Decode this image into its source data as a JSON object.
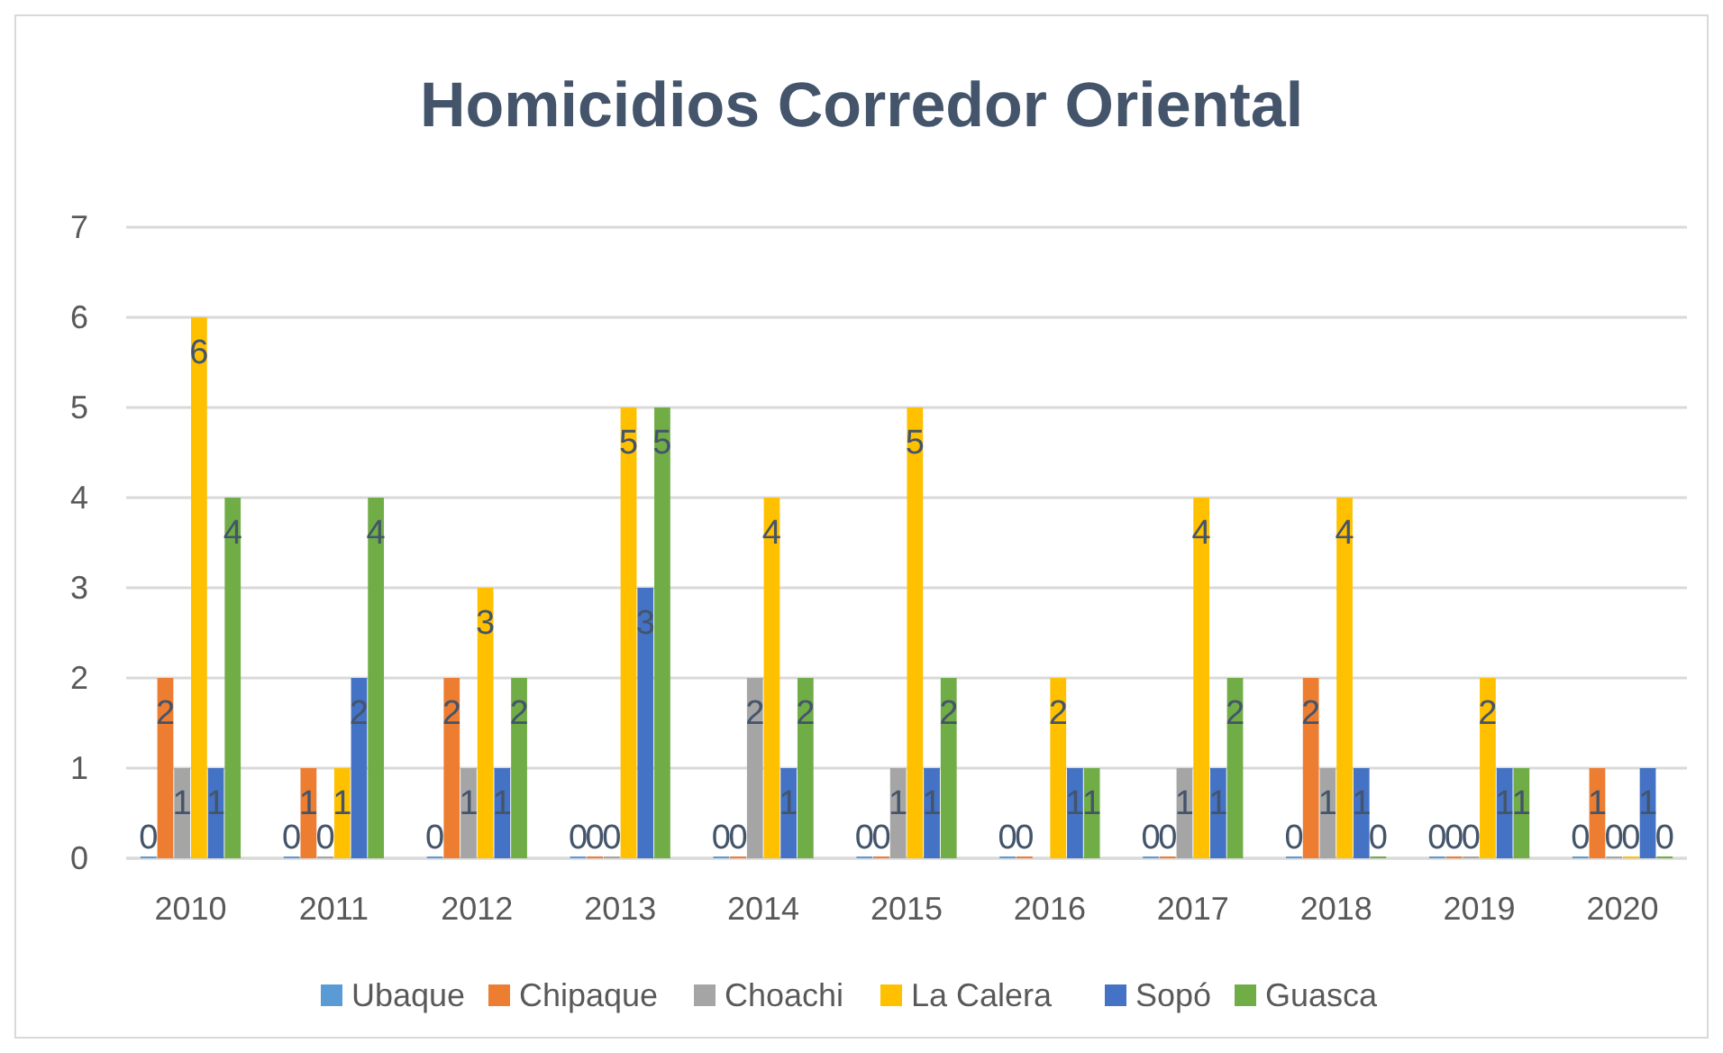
{
  "chart_data": {
    "type": "bar",
    "title": "Homicidios Corredor Oriental",
    "categories": [
      "2010",
      "2011",
      "2012",
      "2013",
      "2014",
      "2015",
      "2016",
      "2017",
      "2018",
      "2019",
      "2020"
    ],
    "series": [
      {
        "name": "Ubaque",
        "color": "#5b9bd5",
        "values": [
          0,
          0,
          0,
          0,
          0,
          0,
          0,
          0,
          0,
          0,
          0
        ]
      },
      {
        "name": "Chipaque",
        "color": "#ed7d31",
        "values": [
          2,
          1,
          2,
          0,
          0,
          0,
          0,
          0,
          2,
          0,
          1
        ]
      },
      {
        "name": "Choachi",
        "color": "#a5a5a5",
        "values": [
          1,
          0,
          1,
          0,
          2,
          1,
          null,
          1,
          1,
          0,
          0
        ]
      },
      {
        "name": "La Calera",
        "color": "#ffc000",
        "values": [
          6,
          1,
          3,
          5,
          4,
          5,
          2,
          4,
          4,
          2,
          0
        ]
      },
      {
        "name": "Sopó",
        "color": "#4472c4",
        "values": [
          1,
          2,
          1,
          3,
          1,
          1,
          1,
          1,
          1,
          1,
          1
        ]
      },
      {
        "name": "Guasca",
        "color": "#70ad47",
        "values": [
          4,
          4,
          2,
          5,
          2,
          2,
          1,
          2,
          0,
          1,
          0
        ]
      }
    ],
    "ylim": [
      0,
      7
    ],
    "yticks": [
      0,
      1,
      2,
      3,
      4,
      5,
      6,
      7
    ],
    "grid": "y",
    "legend": "bottom",
    "data_labels": true
  }
}
